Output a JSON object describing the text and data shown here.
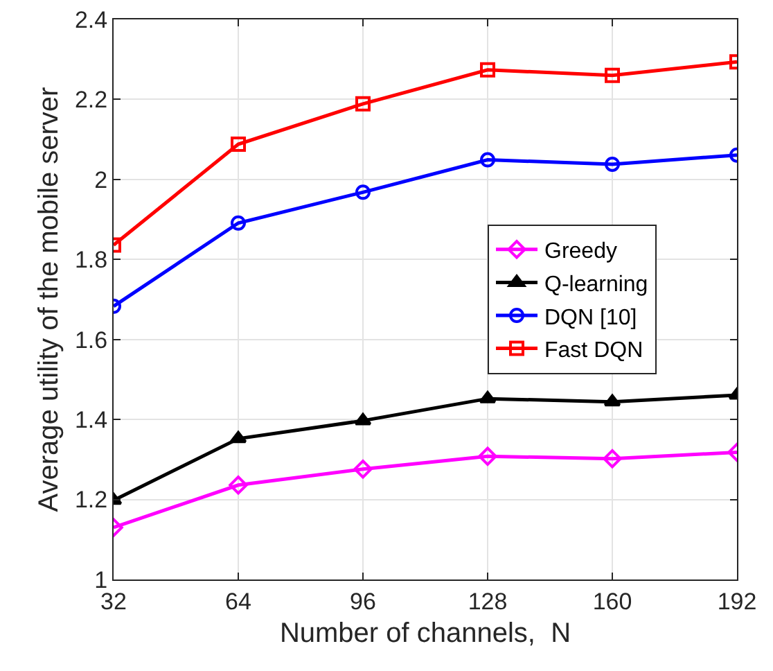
{
  "chart_data": {
    "type": "line",
    "xlabel": "Number of channels,  N",
    "ylabel": "Average utility of the mobile server",
    "x": [
      32,
      64,
      96,
      128,
      160,
      192
    ],
    "xlim": [
      32,
      192
    ],
    "xticks": [
      32,
      64,
      96,
      128,
      160,
      192
    ],
    "ylim": [
      1,
      2.4
    ],
    "yticks": [
      1,
      1.2,
      1.4,
      1.6,
      1.8,
      2,
      2.2,
      2.4
    ],
    "grid": true,
    "legend": "right",
    "line_style": "solid",
    "series": [
      {
        "name": "Greedy",
        "color": "#ff00ff",
        "marker": "diamond",
        "values": [
          1.13,
          1.236,
          1.276,
          1.308,
          1.302,
          1.318
        ]
      },
      {
        "name": "Q-learning",
        "color": "#000000",
        "marker": "triangle",
        "values": [
          1.198,
          1.352,
          1.397,
          1.452,
          1.444,
          1.461
        ]
      },
      {
        "name": "DQN [10]",
        "color": "#0000ff",
        "marker": "circle",
        "values": [
          1.683,
          1.891,
          1.968,
          2.049,
          2.038,
          2.061
        ]
      },
      {
        "name": "Fast DQN",
        "color": "#ff0000",
        "marker": "square",
        "values": [
          1.836,
          2.088,
          2.189,
          2.274,
          2.26,
          2.294
        ]
      }
    ]
  }
}
